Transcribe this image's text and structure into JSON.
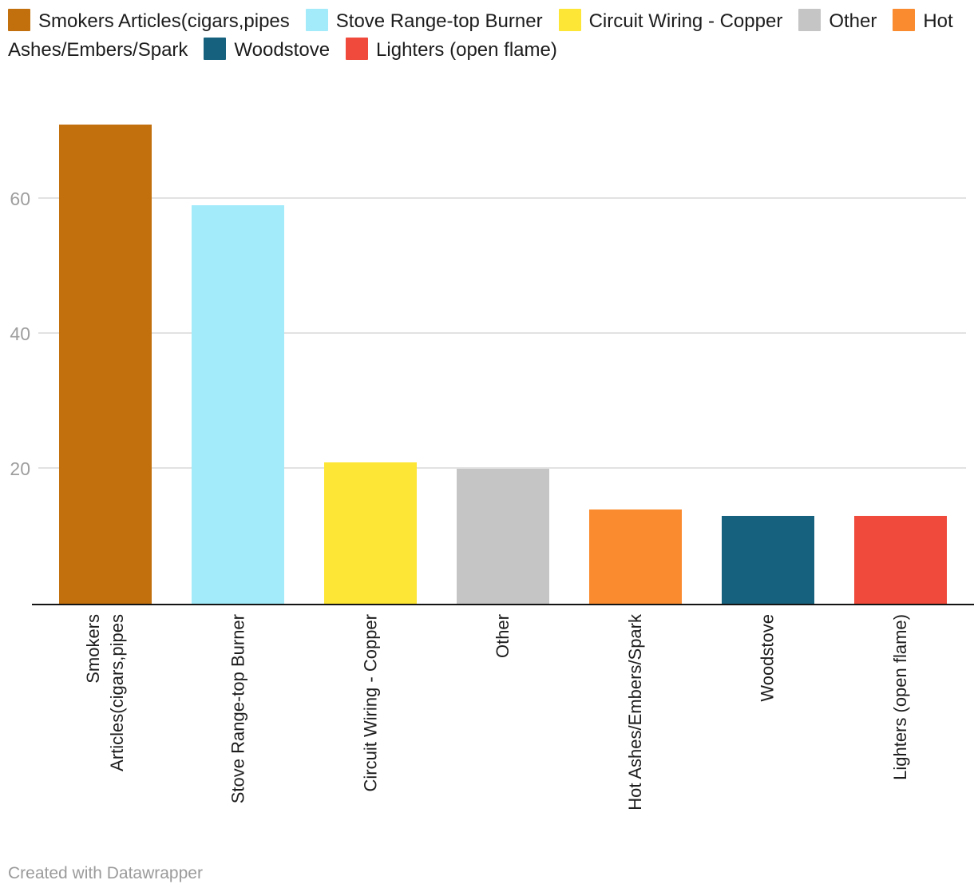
{
  "legend": {
    "items": [
      {
        "label": "Smokers Articles(cigars,pipes",
        "color": "#C2700E",
        "icon": "legend-swatch-square"
      },
      {
        "label": "Stove Range-top Burner",
        "color": "#A3EBFA",
        "icon": "legend-swatch-square"
      },
      {
        "label": "Circuit Wiring - Copper",
        "color": "#FEE636",
        "icon": "legend-swatch-square"
      },
      {
        "label": "Other",
        "color": "#C5C5C5",
        "icon": "legend-swatch-square"
      },
      {
        "label": "Hot\nAshes/Embers/Spark",
        "color": "#FB8B2F",
        "icon": "legend-swatch-square"
      },
      {
        "label": "Woodstove",
        "color": "#15617E",
        "icon": "legend-swatch-square"
      },
      {
        "label": "Lighters (open flame)",
        "color": "#EF4A3B",
        "icon": "legend-swatch-square"
      }
    ]
  },
  "chart_data": {
    "type": "bar",
    "title": "",
    "xlabel": "",
    "ylabel": "",
    "categories": [
      "Smokers Articles(cigars,pipes",
      "Stove Range-top Burner",
      "Circuit Wiring - Copper",
      "Other",
      "Hot Ashes/Embers/Spark",
      "Woodstove",
      "Lighters (open flame)"
    ],
    "values": [
      71,
      59,
      21,
      20,
      14,
      13,
      13
    ],
    "colors": [
      "#C2700E",
      "#A3EBFA",
      "#FEE636",
      "#C5C5C5",
      "#FB8B2F",
      "#15617E",
      "#EF4A3B"
    ],
    "axis_label_lines": [
      [
        "Smokers",
        "Articles(cigars,pipes"
      ],
      [
        "Stove Range-top Burner"
      ],
      [
        "Circuit Wiring - Copper"
      ],
      [
        "Other"
      ],
      [
        "Hot Ashes/Embers/Spark"
      ],
      [
        "Woodstove"
      ],
      [
        "Lighters (open flame)"
      ]
    ],
    "yticks": [
      20,
      40,
      60
    ],
    "ylim": [
      0,
      77.75
    ],
    "grid": "horizontal",
    "legend_position": "top",
    "tick_color": "#9e9e9e",
    "gridline_color": "#e2e2e2",
    "axis_color": "#141414"
  },
  "footer": {
    "credit": "Created with Datawrapper"
  }
}
